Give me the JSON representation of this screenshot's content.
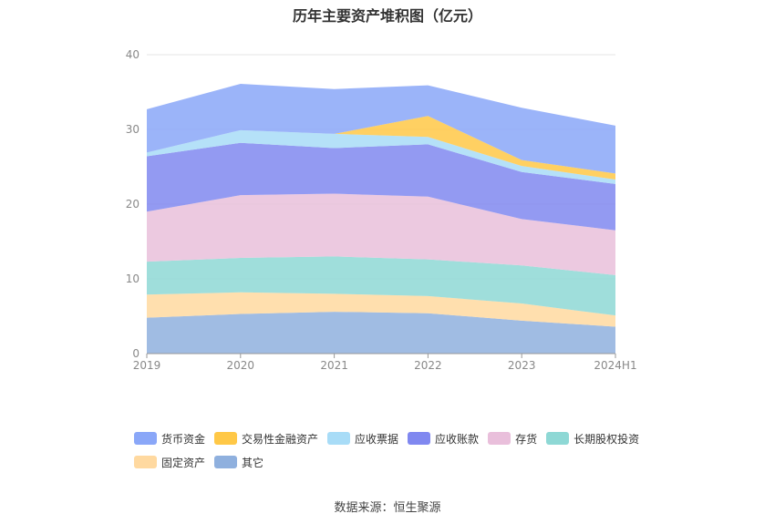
{
  "title": "历年主要资产堆积图（亿元）",
  "source": "数据来源：恒生聚源",
  "chart_data": {
    "type": "area",
    "stacked": true,
    "title": "历年主要资产堆积图（亿元）",
    "x": [
      "2019",
      "2020",
      "2021",
      "2022",
      "2023",
      "2024H1"
    ],
    "ylim": [
      0,
      40
    ],
    "yticks": [
      "0",
      "10",
      "20",
      "30",
      "40"
    ],
    "grid": true,
    "legend_position": "bottom",
    "series": [
      {
        "name": "其它",
        "color": "#8fb0de",
        "values": [
          4.8,
          5.3,
          5.6,
          5.4,
          4.4,
          3.6
        ]
      },
      {
        "name": "固定资产",
        "color": "#ffd9a0",
        "values": [
          3.1,
          2.9,
          2.4,
          2.3,
          2.3,
          1.5
        ]
      },
      {
        "name": "长期股权投资",
        "color": "#8ed8d5",
        "values": [
          4.4,
          4.6,
          5.0,
          4.9,
          5.1,
          5.4
        ]
      },
      {
        "name": "存货",
        "color": "#e9bfdb",
        "values": [
          6.7,
          8.4,
          8.4,
          8.4,
          6.2,
          6.0
        ]
      },
      {
        "name": "应收账款",
        "color": "#8088f0",
        "values": [
          7.4,
          7.0,
          6.1,
          7.0,
          6.3,
          6.2
        ]
      },
      {
        "name": "应收票据",
        "color": "#a8dcf7",
        "values": [
          0.5,
          1.7,
          1.9,
          1.0,
          0.8,
          0.6
        ]
      },
      {
        "name": "交易性金融资产",
        "color": "#ffc847",
        "values": [
          0.0,
          0.0,
          0.0,
          2.8,
          0.8,
          0.8
        ]
      },
      {
        "name": "货币资金",
        "color": "#8aa7f8",
        "values": [
          5.8,
          6.2,
          6.0,
          4.1,
          7.0,
          6.4
        ]
      }
    ]
  },
  "legend": [
    {
      "label": "货币资金",
      "color": "#8aa7f8"
    },
    {
      "label": "交易性金融资产",
      "color": "#ffc847"
    },
    {
      "label": "应收票据",
      "color": "#a8dcf7"
    },
    {
      "label": "应收账款",
      "color": "#8088f0"
    },
    {
      "label": "存货",
      "color": "#e9bfdb"
    },
    {
      "label": "长期股权投资",
      "color": "#8ed8d5"
    },
    {
      "label": "固定资产",
      "color": "#ffd9a0"
    },
    {
      "label": "其它",
      "color": "#8fb0de"
    }
  ]
}
